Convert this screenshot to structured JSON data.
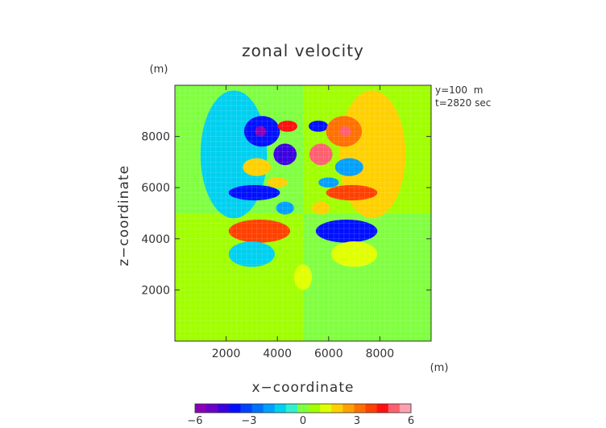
{
  "chart_data": {
    "type": "heatmap",
    "title": "zonal velocity",
    "xlabel": "x−coordinate",
    "ylabel": "z−coordinate",
    "x_unit": "(m)",
    "y_unit": "(m)",
    "xlim": [
      0,
      10000
    ],
    "ylim": [
      0,
      10000
    ],
    "x_ticks": [
      2000,
      4000,
      6000,
      8000
    ],
    "y_ticks": [
      2000,
      4000,
      6000,
      8000
    ],
    "x_tick_labels": [
      "2000",
      "4000",
      "6000",
      "8000"
    ],
    "y_tick_labels": [
      "2000",
      "4000",
      "6000",
      "8000"
    ],
    "annotations": [
      "y=100  m",
      "t=2820 sec"
    ],
    "colorbar": {
      "min": -6,
      "max": 6,
      "ticks": [
        -6,
        -3,
        0,
        3,
        6
      ],
      "tick_labels": [
        "−6",
        "−3",
        "0",
        "3",
        "6"
      ],
      "colors": [
        "#8a00b8",
        "#6a00c8",
        "#3a00e0",
        "#0010ff",
        "#0040ff",
        "#0070ff",
        "#00a0ff",
        "#00d0f0",
        "#30f0d0",
        "#80ff40",
        "#a0ff00",
        "#e0ff00",
        "#ffd000",
        "#ffa000",
        "#ff7000",
        "#ff4000",
        "#ff1010",
        "#ff6070",
        "#ffa0b0"
      ]
    },
    "field": {
      "background": [
        {
          "x": [
            0,
            5000
          ],
          "y": [
            5000,
            10000
          ],
          "value": 0
        },
        {
          "x": [
            5000,
            10000
          ],
          "y": [
            5000,
            10000
          ],
          "value": 0.8
        },
        {
          "x": [
            0,
            5000
          ],
          "y": [
            0,
            5000
          ],
          "value": 0.8
        },
        {
          "x": [
            5000,
            10000
          ],
          "y": [
            0,
            5000
          ],
          "value": 0
        }
      ],
      "features": [
        {
          "x": 2300,
          "y": 7300,
          "rx": 1300,
          "ry": 2500,
          "value": -1
        },
        {
          "x": 7700,
          "y": 7300,
          "rx": 1300,
          "ry": 2500,
          "value": 2
        },
        {
          "x": 3400,
          "y": 8200,
          "rx": 700,
          "ry": 600,
          "value": -4
        },
        {
          "x": 3350,
          "y": 8200,
          "rx": 220,
          "ry": 200,
          "value": -6
        },
        {
          "x": 4400,
          "y": 8400,
          "rx": 380,
          "ry": 220,
          "value": 4.5
        },
        {
          "x": 5600,
          "y": 8400,
          "rx": 380,
          "ry": 220,
          "value": -4
        },
        {
          "x": 6600,
          "y": 8200,
          "rx": 700,
          "ry": 600,
          "value": 3
        },
        {
          "x": 6650,
          "y": 8200,
          "rx": 220,
          "ry": 200,
          "value": 5
        },
        {
          "x": 4300,
          "y": 7300,
          "rx": 450,
          "ry": 420,
          "value": -4.5
        },
        {
          "x": 5700,
          "y": 7300,
          "rx": 450,
          "ry": 420,
          "value": 5
        },
        {
          "x": 3200,
          "y": 6800,
          "rx": 550,
          "ry": 350,
          "value": 2
        },
        {
          "x": 6800,
          "y": 6800,
          "rx": 550,
          "ry": 350,
          "value": -2
        },
        {
          "x": 3100,
          "y": 5800,
          "rx": 1000,
          "ry": 300,
          "value": -4
        },
        {
          "x": 6900,
          "y": 5800,
          "rx": 1000,
          "ry": 300,
          "value": 4
        },
        {
          "x": 3300,
          "y": 4300,
          "rx": 1200,
          "ry": 450,
          "value": 3.5
        },
        {
          "x": 6700,
          "y": 4300,
          "rx": 1200,
          "ry": 450,
          "value": -3.5
        },
        {
          "x": 3000,
          "y": 3400,
          "rx": 900,
          "ry": 500,
          "value": -1.5
        },
        {
          "x": 7000,
          "y": 3400,
          "rx": 900,
          "ry": 500,
          "value": 1.5
        },
        {
          "x": 4300,
          "y": 5200,
          "rx": 350,
          "ry": 250,
          "value": -2
        },
        {
          "x": 5700,
          "y": 5200,
          "rx": 350,
          "ry": 250,
          "value": 2
        },
        {
          "x": 4000,
          "y": 6200,
          "rx": 400,
          "ry": 200,
          "value": 2
        },
        {
          "x": 6000,
          "y": 6200,
          "rx": 400,
          "ry": 200,
          "value": -2
        },
        {
          "x": 5000,
          "y": 2500,
          "rx": 350,
          "ry": 500,
          "value": 1
        }
      ]
    }
  }
}
